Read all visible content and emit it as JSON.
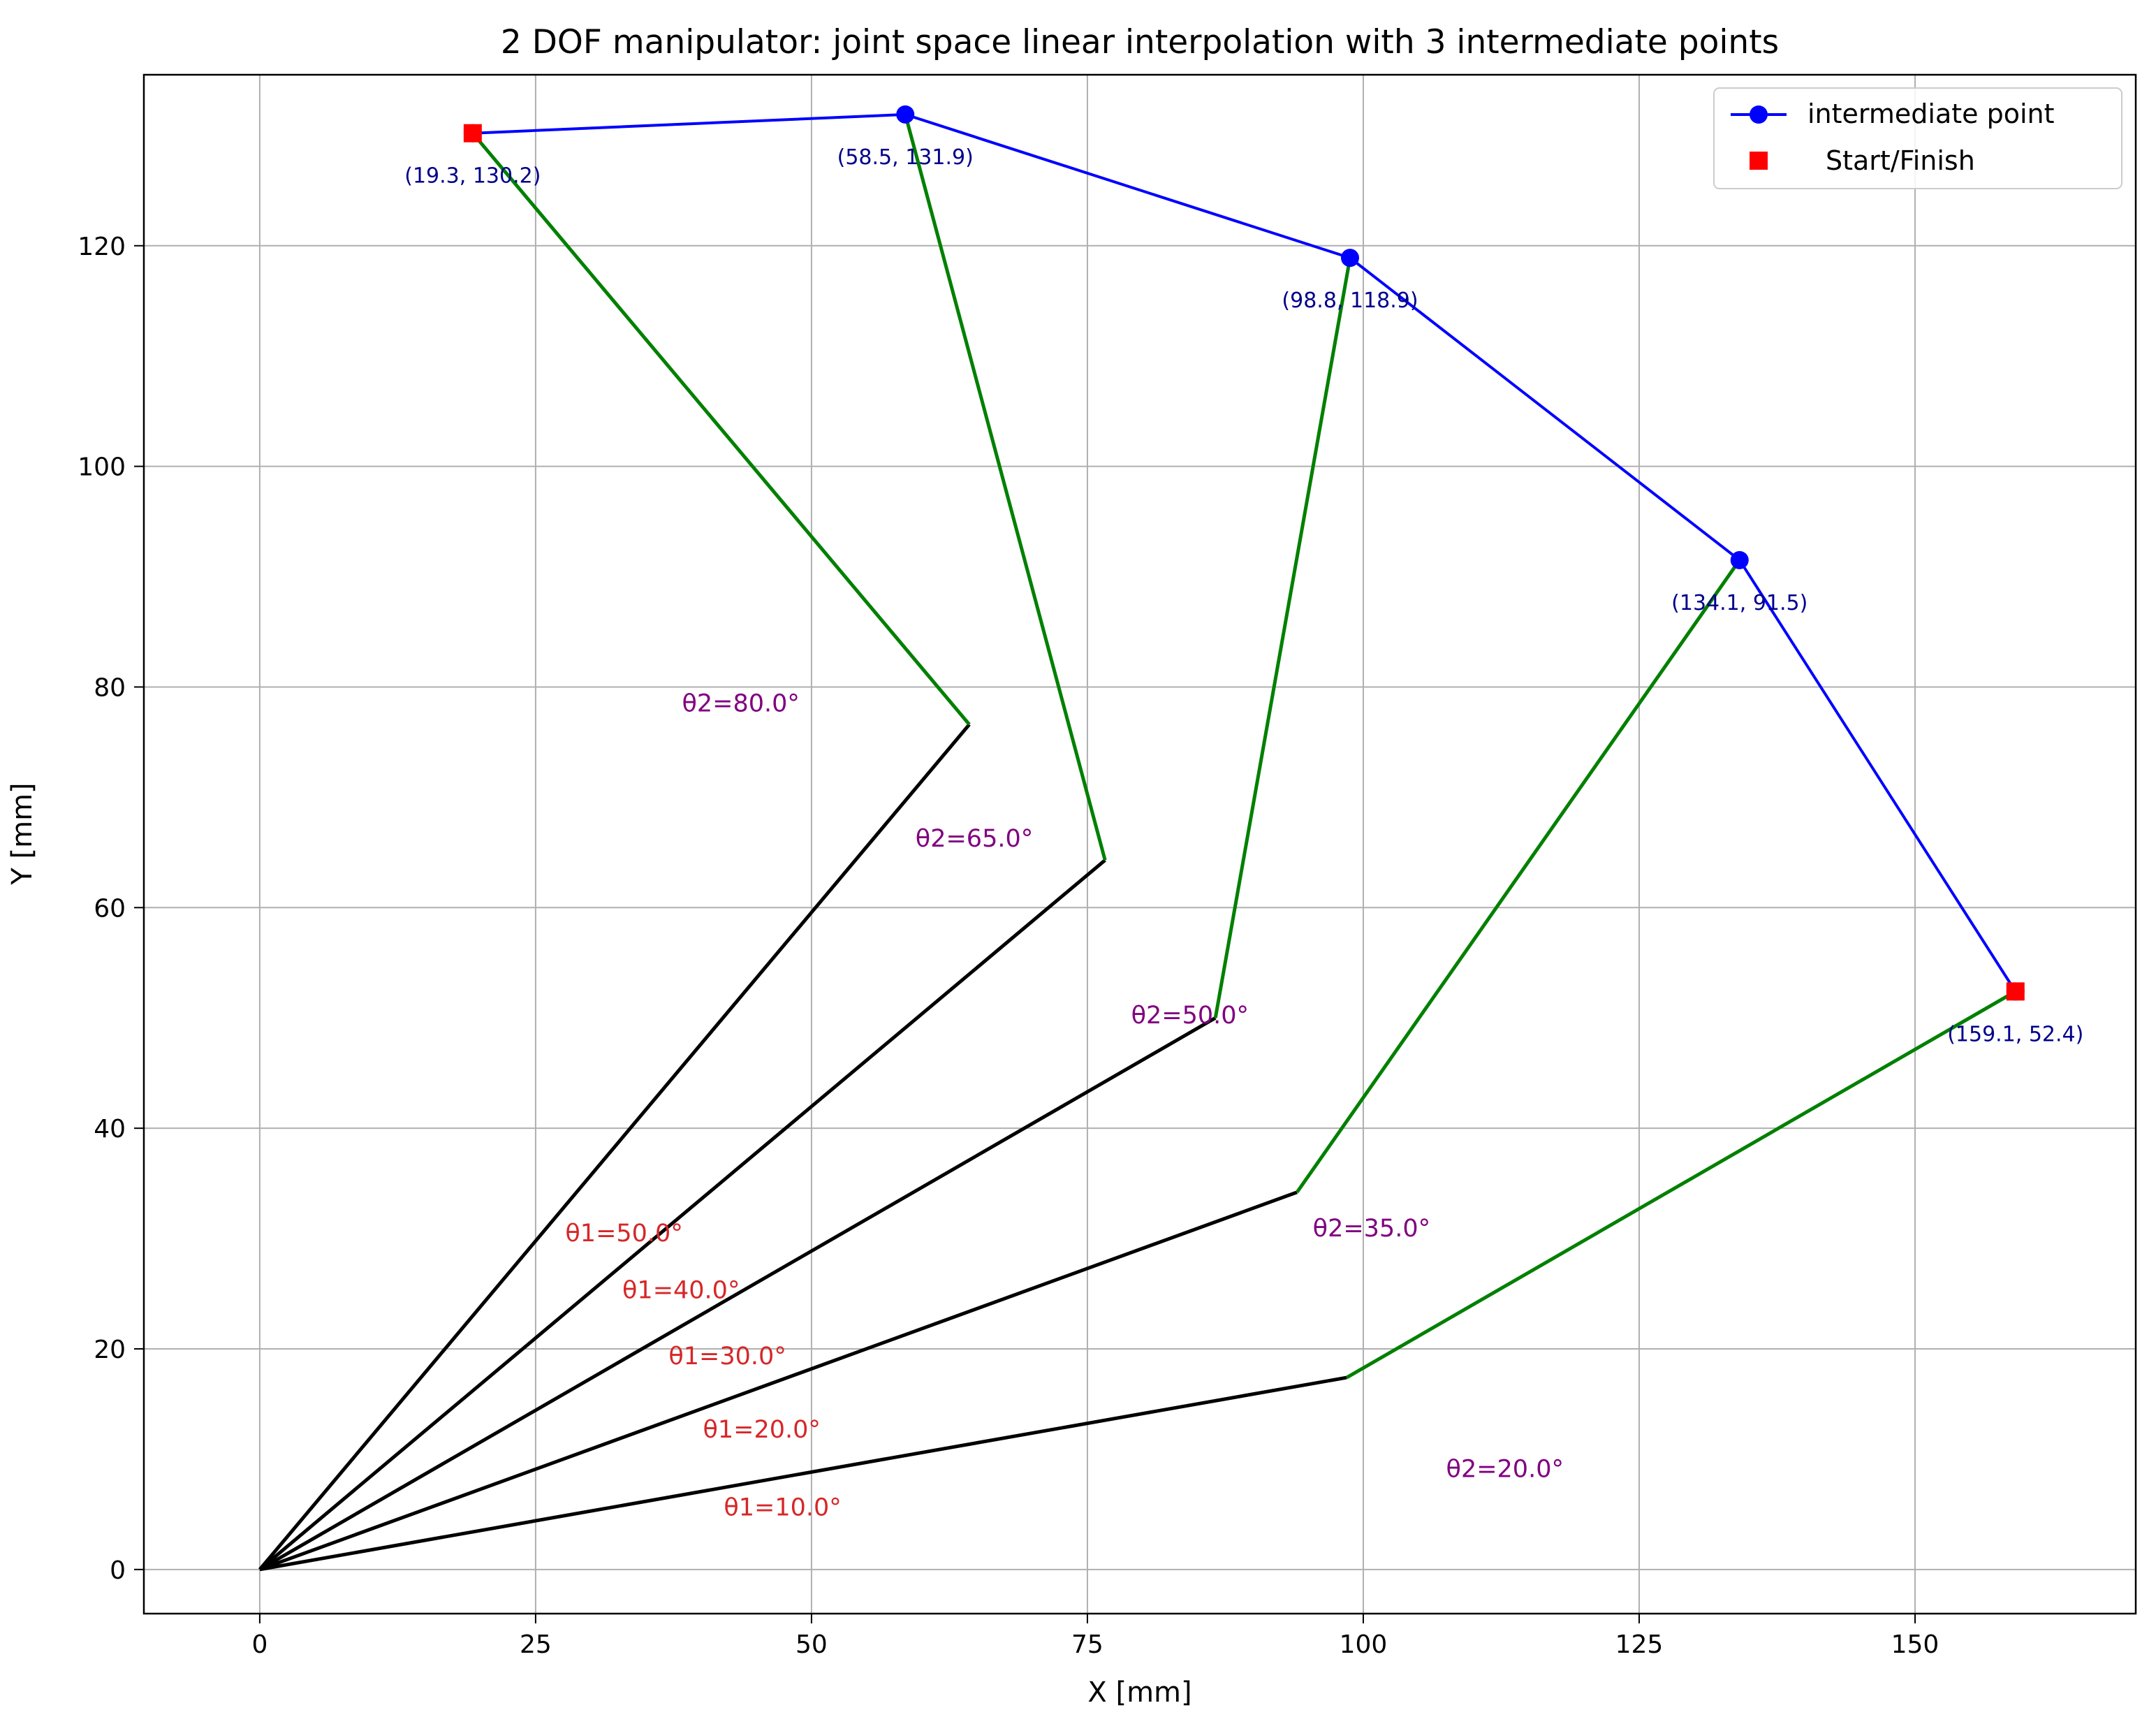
{
  "chart_data": {
    "type": "line",
    "title": "2 DOF manipulator: joint space linear interpolation with 3 intermediate points",
    "xlabel": "X [mm]",
    "ylabel": "Y [mm]",
    "xlim": [
      -10.5,
      170
    ],
    "ylim": [
      -4,
      135.5
    ],
    "xticks": [
      0,
      25,
      50,
      75,
      100,
      125,
      150
    ],
    "yticks": [
      0,
      20,
      40,
      60,
      80,
      100,
      120
    ],
    "grid": true,
    "legend_position": "top-right",
    "legend": [
      {
        "label": "intermediate point",
        "marker": "circle-line",
        "color": "#0000ff"
      },
      {
        "label": "Start/Finish",
        "marker": "square",
        "color": "#ff0000"
      }
    ],
    "colors": {
      "path": "#0000ff",
      "start_finish": "#ff0000",
      "link1": "#000000",
      "link2": "#008000",
      "theta1_label": "#d62728",
      "theta2_label": "#800080",
      "point_label": "#00008b",
      "grid": "#b0b0b0"
    },
    "base": [
      0,
      0
    ],
    "configurations": [
      {
        "theta1_label": "θ1=50.0°",
        "theta2_label": "θ2=80.0°",
        "elbow": [
          64.3,
          76.6
        ],
        "end": [
          19.3,
          130.2
        ],
        "point_label": "(19.3, 130.2)",
        "kind": "start"
      },
      {
        "theta1_label": "θ1=40.0°",
        "theta2_label": "θ2=65.0°",
        "elbow": [
          76.6,
          64.3
        ],
        "end": [
          58.5,
          131.9
        ],
        "point_label": "(58.5, 131.9)",
        "kind": "intermediate"
      },
      {
        "theta1_label": "θ1=30.0°",
        "theta2_label": "θ2=50.0°",
        "elbow": [
          86.6,
          50.0
        ],
        "end": [
          98.8,
          118.9
        ],
        "point_label": "(98.8, 118.9)",
        "kind": "intermediate"
      },
      {
        "theta1_label": "θ1=20.0°",
        "theta2_label": "θ2=35.0°",
        "elbow": [
          94.0,
          34.2
        ],
        "end": [
          134.1,
          91.5
        ],
        "point_label": "(134.1, 91.5)",
        "kind": "intermediate"
      },
      {
        "theta1_label": "θ1=10.0°",
        "theta2_label": "θ2=20.0°",
        "elbow": [
          98.5,
          17.4
        ],
        "end": [
          159.1,
          52.4
        ],
        "point_label": "(159.1, 52.4)",
        "kind": "finish"
      }
    ]
  }
}
